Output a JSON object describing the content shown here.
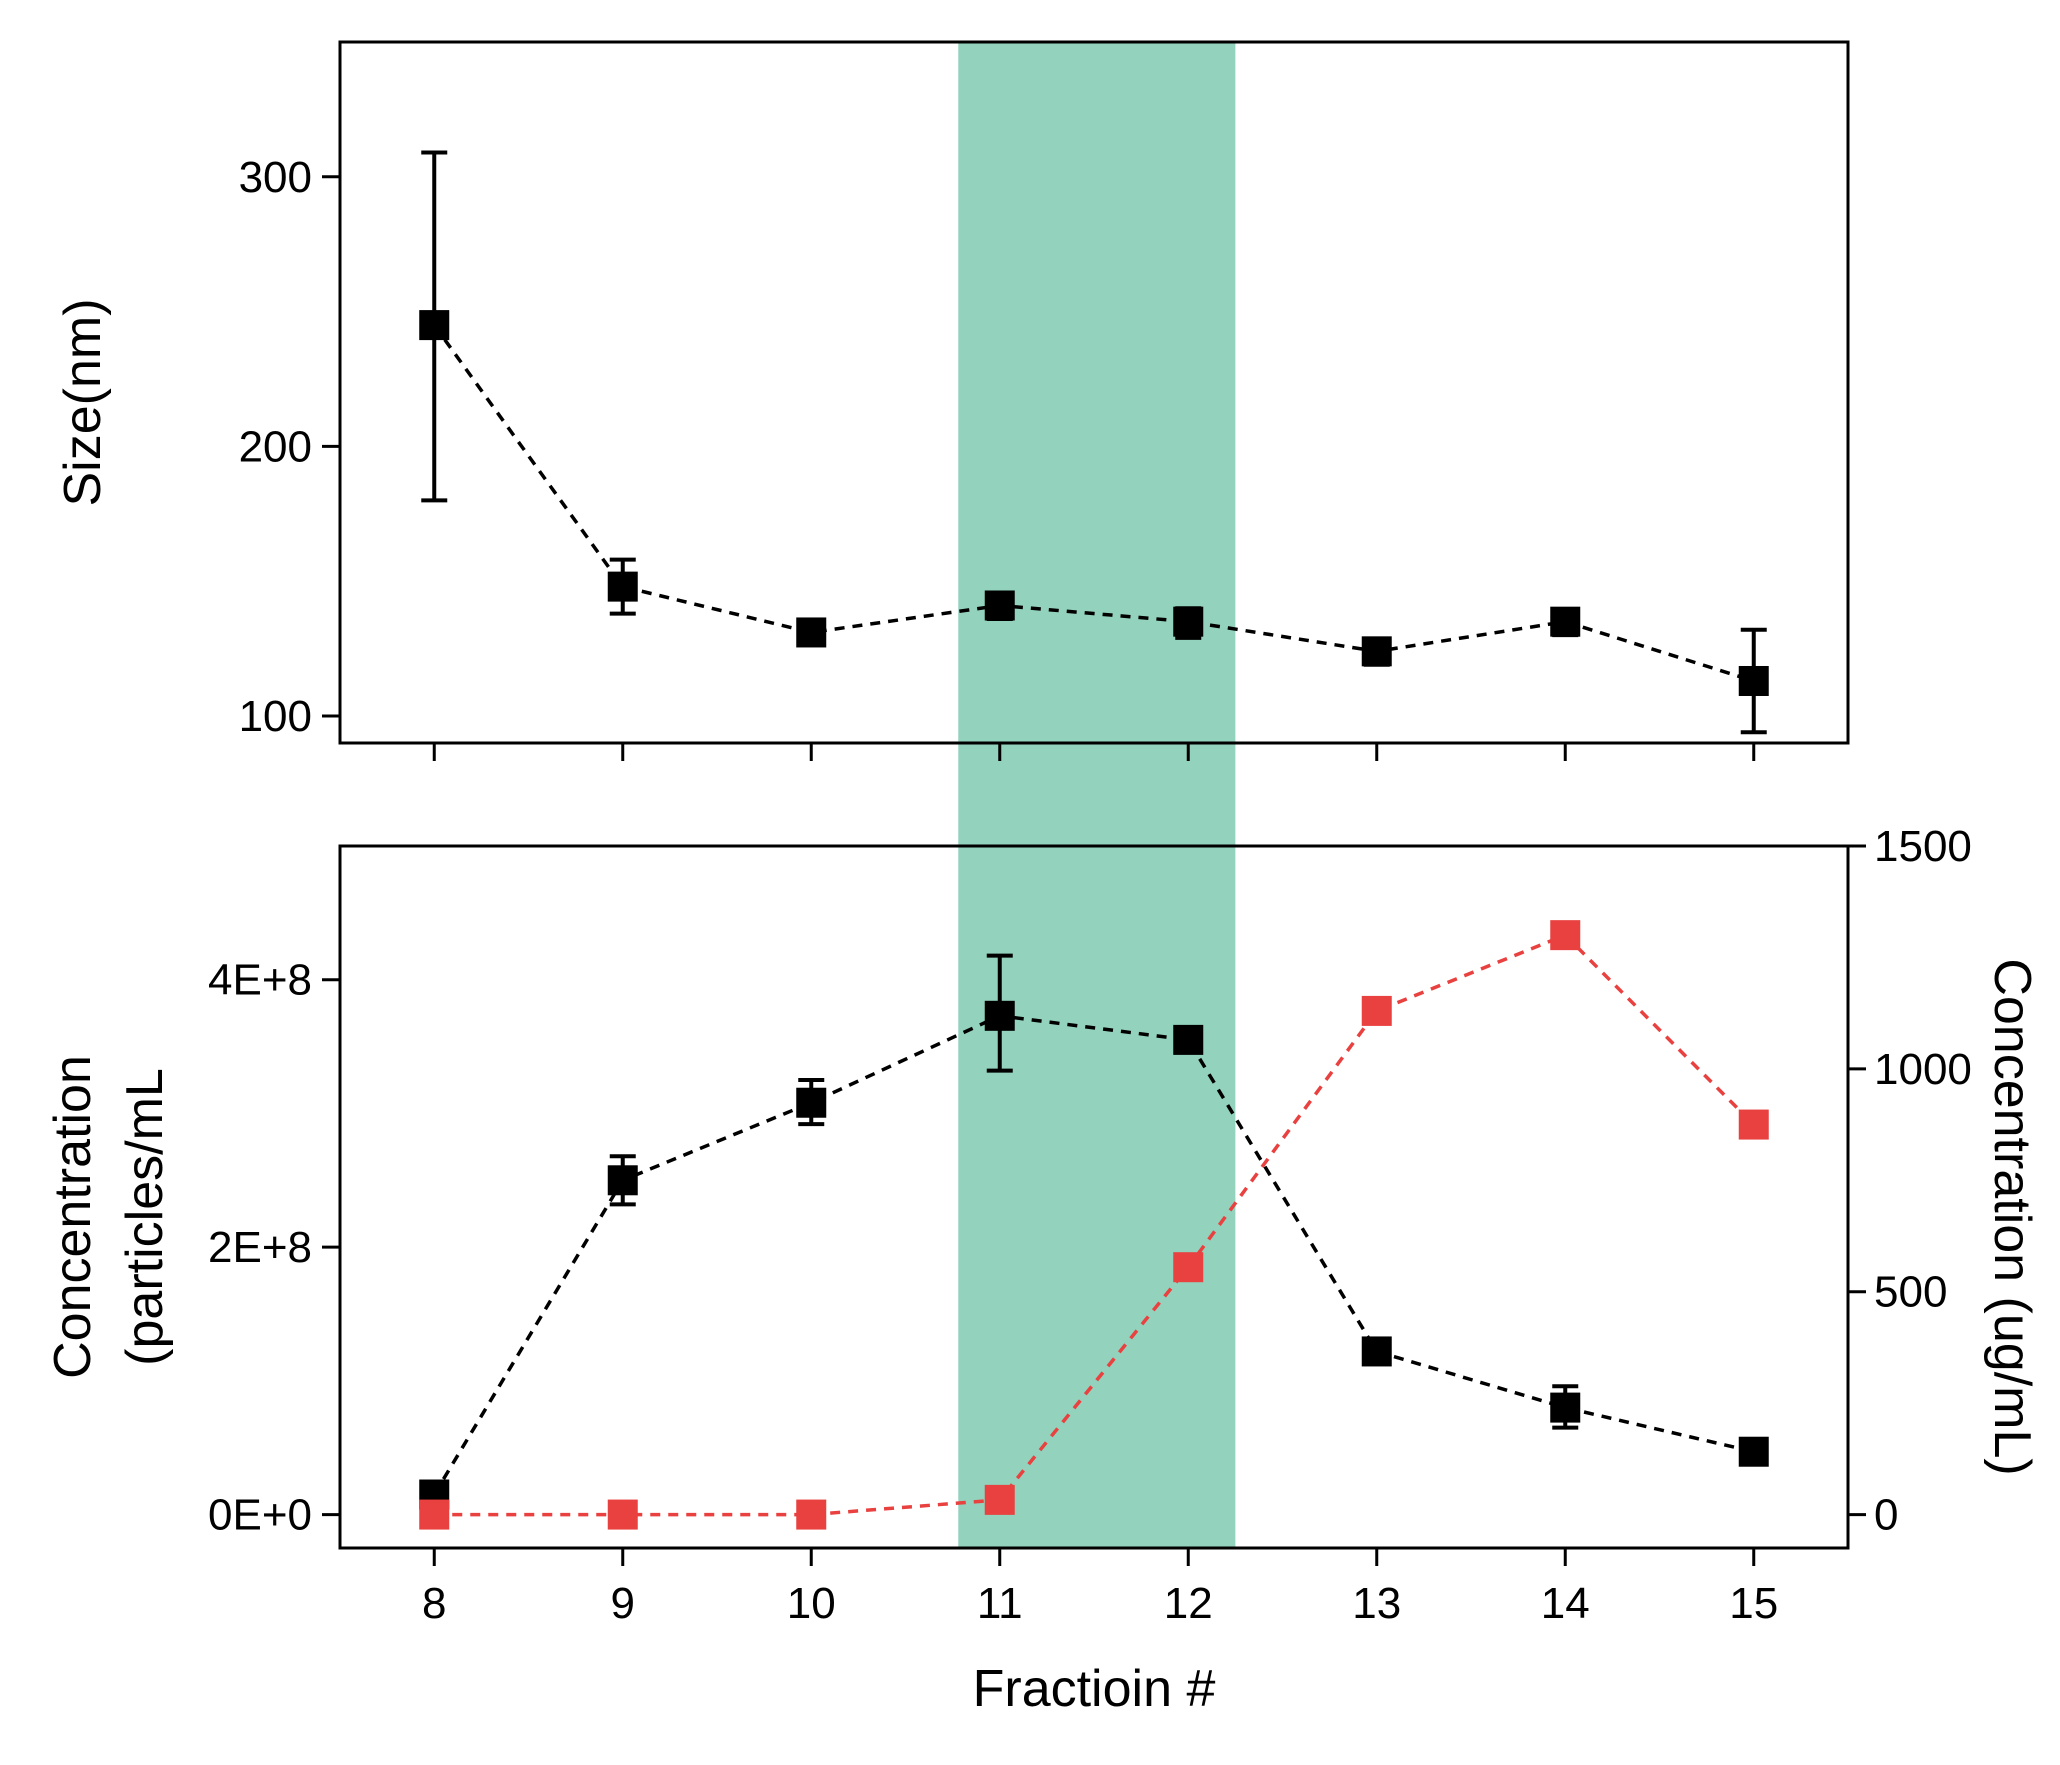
{
  "colors": {
    "black_series": "#000000",
    "red_series": "#e8413f",
    "highlight_band": "#93d2bd",
    "axis": "#000000",
    "background": "#ffffff"
  },
  "chart_data": [
    {
      "type": "line",
      "panel": "top",
      "xlim": [
        7.5,
        15.5
      ],
      "ylim": [
        90,
        350
      ],
      "yticks": [
        "100",
        "200",
        "300"
      ],
      "ytick_values": [
        100,
        200,
        300
      ],
      "ylabel": "Size(nm)",
      "x_tick_labels_shown": false,
      "highlight_band": {
        "x_range": [
          10.78,
          12.25
        ]
      },
      "line_style": "dashed",
      "marker": "square",
      "series": [
        {
          "color": "#000000",
          "x": [
            8,
            9,
            10,
            11,
            12,
            13,
            14,
            15
          ],
          "values": [
            245,
            148,
            131,
            141,
            135,
            124,
            135,
            113
          ],
          "error_low": [
            180,
            138,
            127,
            136,
            129,
            119,
            130,
            94
          ],
          "error_high": [
            309,
            158,
            134,
            145,
            140,
            128,
            139,
            132
          ]
        }
      ]
    },
    {
      "type": "line",
      "panel": "bottom",
      "xlim": [
        7.5,
        15.5
      ],
      "ylim": [
        -25000000.0,
        500000000.0
      ],
      "yticks": [
        "0E+0",
        "2E+8",
        "4E+8"
      ],
      "ytick_values": [
        0,
        200000000,
        400000000
      ],
      "ylabel_lines": [
        "Concentration",
        "(particles/mL"
      ],
      "y2lim": [
        -75,
        1500
      ],
      "y2ticks": [
        "0",
        "500",
        "1000",
        "1500"
      ],
      "y2tick_values": [
        0,
        500,
        1000,
        1500
      ],
      "y2label": "Concentration (ug/mL)",
      "categories": [
        "8",
        "9",
        "10",
        "11",
        "12",
        "13",
        "14",
        "15"
      ],
      "xlabel": "Fractioin #",
      "highlight_band": {
        "x_range": [
          10.78,
          12.25
        ]
      },
      "line_style": "dashed",
      "marker": "square",
      "series": [
        {
          "axis": "left",
          "color": "#000000",
          "x": [
            8,
            9,
            10,
            11,
            12,
            13,
            14,
            15
          ],
          "values": [
            15000000,
            250000000,
            308000000,
            373000000,
            355000000,
            122000000,
            80000000,
            47000000
          ],
          "error_low": [
            13000000,
            232000000,
            292000000,
            332000000,
            350000000,
            118000000,
            65000000,
            44000000
          ],
          "error_high": [
            17000000,
            268000000,
            325000000,
            418000000,
            360000000,
            126000000,
            96000000,
            50000000
          ]
        },
        {
          "axis": "right",
          "color": "#e8413f",
          "x": [
            8,
            9,
            10,
            11,
            12,
            13,
            14,
            15
          ],
          "values": [
            0,
            0,
            0,
            33,
            555,
            1130,
            1300,
            875
          ]
        }
      ]
    }
  ]
}
